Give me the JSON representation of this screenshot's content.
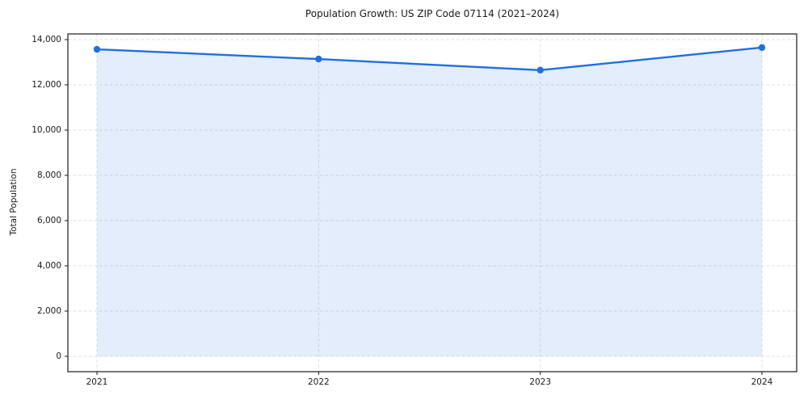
{
  "chart_data": {
    "type": "line",
    "title": "Population Growth: US ZIP Code 07114 (2021–2024)",
    "xlabel": "",
    "ylabel": "Total Population",
    "x": [
      "2021",
      "2022",
      "2023",
      "2024"
    ],
    "series": [
      {
        "name": "Total Population",
        "values": [
          13570,
          13140,
          12650,
          13650
        ],
        "line_color": "#1f6fe0",
        "fill_color": "rgba(31,111,224,0.12)",
        "marker": "circle"
      }
    ],
    "ylim": [
      0,
      14000
    ],
    "yticks": [
      0,
      2000,
      4000,
      6000,
      8000,
      10000,
      12000,
      14000
    ],
    "ytick_labels": [
      "0",
      "2,000",
      "4,000",
      "6,000",
      "8,000",
      "10,000",
      "12,000",
      "14,000"
    ],
    "xtick_labels": [
      "2021",
      "2022",
      "2023",
      "2024"
    ],
    "grid": true,
    "grid_style": "dashed",
    "legend": "none",
    "area_fill_to": 0
  }
}
